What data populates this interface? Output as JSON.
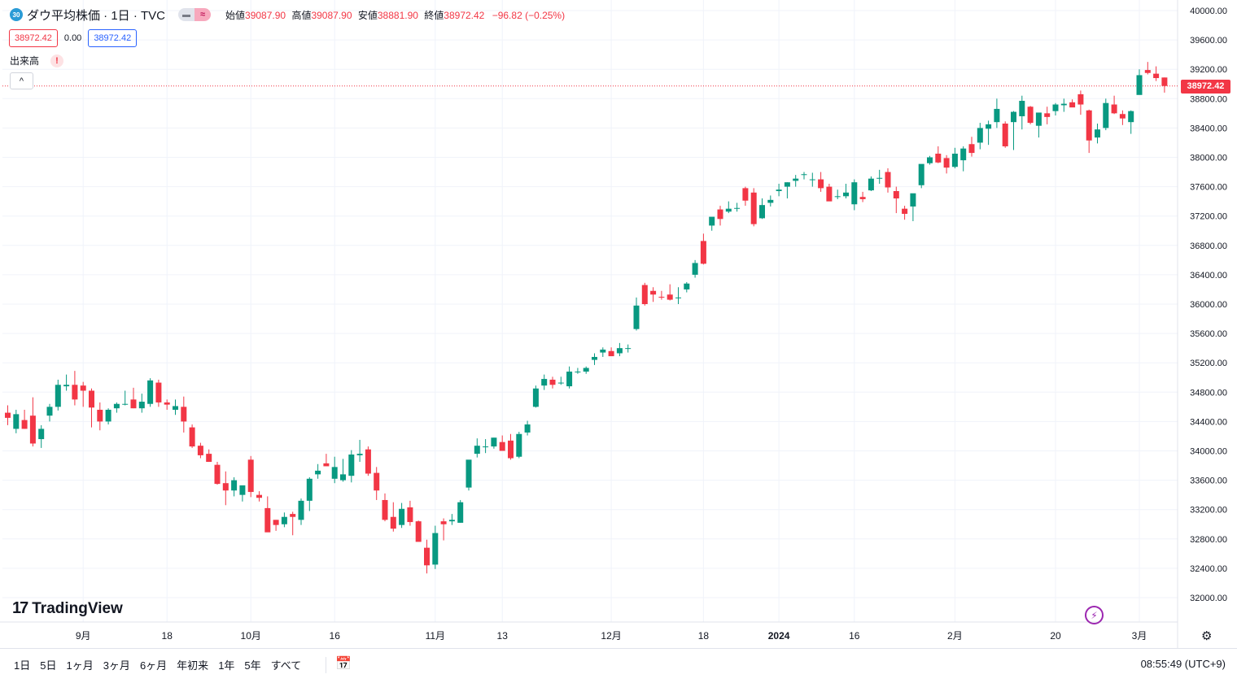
{
  "header": {
    "symbol_badge": "30",
    "title": "ダウ平均株価 · 1日 · TVC",
    "ohlc": [
      {
        "label": "始値",
        "value": "39087.90"
      },
      {
        "label": "高値",
        "value": "39087.90"
      },
      {
        "label": "安値",
        "value": "38881.90"
      },
      {
        "label": "終値",
        "value": "38972.42"
      },
      {
        "label": "",
        "value": "−96.82 (−0.25%)"
      }
    ],
    "bid": "38972.42",
    "spread": "0.00",
    "ask": "38972.42",
    "volume_label": "出来高",
    "warning": "!",
    "collapse": "^"
  },
  "brand": {
    "mark": "17",
    "name": "TradingView"
  },
  "price_tag": "38972.42",
  "bottom": {
    "ranges": [
      "1日",
      "5日",
      "1ヶ月",
      "3ヶ月",
      "6ヶ月",
      "年初来",
      "1年",
      "5年",
      "すべて"
    ],
    "clock": "08:55:49 (UTC+9)"
  },
  "colors": {
    "up": "#089981",
    "down": "#f23645",
    "grid": "#f0f3fa",
    "axis_text": "#131722"
  },
  "chart_data": {
    "type": "candlestick",
    "y_axis": {
      "ticks": [
        32000,
        32400,
        32800,
        33200,
        33600,
        34000,
        34400,
        34800,
        35200,
        35600,
        36000,
        36400,
        36800,
        37200,
        37600,
        38000,
        38400,
        38800,
        39200,
        39600,
        40000
      ],
      "tick_labels": [
        "32000.00",
        "32400.00",
        "32800.00",
        "33200.00",
        "33600.00",
        "34000.00",
        "34400.00",
        "34800.00",
        "35200.00",
        "35600.00",
        "36000.00",
        "36400.00",
        "36800.00",
        "37200.00",
        "37600.00",
        "38000.00",
        "38400.00",
        "38800.00",
        "39200.00",
        "39600.00",
        "40000.00"
      ],
      "range": [
        31600,
        40050
      ],
      "side": "right"
    },
    "x_axis": {
      "tick_labels": [
        "9月",
        "18",
        "10月",
        "16",
        "11月",
        "13",
        "12月",
        "18",
        "2024",
        "16",
        "2月",
        "20",
        "3月"
      ],
      "tick_index": [
        9,
        19,
        29,
        39,
        51,
        59,
        72,
        83,
        92,
        101,
        113,
        125,
        135
      ]
    },
    "last_price": 38972.42,
    "candles": [
      [
        34520,
        34620,
        34350,
        34450
      ],
      [
        34300,
        34560,
        34240,
        34500
      ],
      [
        34420,
        34560,
        34300,
        34300
      ],
      [
        34480,
        34730,
        34060,
        34100
      ],
      [
        34160,
        34350,
        34040,
        34300
      ],
      [
        34480,
        34640,
        34400,
        34600
      ],
      [
        34600,
        34970,
        34550,
        34900
      ],
      [
        34880,
        35040,
        34820,
        34900
      ],
      [
        34900,
        35090,
        34620,
        34700
      ],
      [
        34890,
        34940,
        34600,
        34820
      ],
      [
        34820,
        34850,
        34320,
        34590
      ],
      [
        34560,
        34660,
        34280,
        34400
      ],
      [
        34400,
        34580,
        34360,
        34560
      ],
      [
        34580,
        34660,
        34520,
        34640
      ],
      [
        34640,
        34820,
        34620,
        34640
      ],
      [
        34700,
        34860,
        34580,
        34580
      ],
      [
        34580,
        34780,
        34520,
        34670
      ],
      [
        34640,
        34990,
        34600,
        34960
      ],
      [
        34930,
        34970,
        34600,
        34660
      ],
      [
        34660,
        34700,
        34560,
        34630
      ],
      [
        34560,
        34700,
        34490,
        34610
      ],
      [
        34600,
        34740,
        34250,
        34400
      ],
      [
        34320,
        34360,
        34040,
        34060
      ],
      [
        34070,
        34110,
        33900,
        33940
      ],
      [
        33960,
        34020,
        33850,
        33850
      ],
      [
        33810,
        33850,
        33540,
        33550
      ],
      [
        33560,
        33720,
        33260,
        33460
      ],
      [
        33460,
        33640,
        33380,
        33600
      ],
      [
        33400,
        33520,
        33310,
        33530
      ],
      [
        33880,
        33930,
        33370,
        33440
      ],
      [
        33400,
        33450,
        33310,
        33360
      ],
      [
        33220,
        33380,
        32920,
        32890
      ],
      [
        33060,
        33060,
        32910,
        32990
      ],
      [
        33000,
        33160,
        32960,
        33100
      ],
      [
        33140,
        33170,
        32850,
        33100
      ],
      [
        33060,
        33350,
        32990,
        33320
      ],
      [
        33320,
        33640,
        33180,
        33620
      ],
      [
        33680,
        33820,
        33620,
        33730
      ],
      [
        33830,
        33960,
        33810,
        33790
      ],
      [
        33620,
        33920,
        33560,
        33780
      ],
      [
        33600,
        33890,
        33580,
        33680
      ],
      [
        33660,
        34010,
        33570,
        33950
      ],
      [
        33940,
        34150,
        33850,
        33960
      ],
      [
        34020,
        34060,
        33660,
        33690
      ],
      [
        33700,
        33780,
        33330,
        33460
      ],
      [
        33330,
        33420,
        33040,
        33060
      ],
      [
        33100,
        33300,
        32900,
        32940
      ],
      [
        32990,
        33290,
        32950,
        33210
      ],
      [
        33230,
        33320,
        32980,
        33030
      ],
      [
        33040,
        33050,
        32770,
        32760
      ],
      [
        32680,
        32790,
        32330,
        32440
      ],
      [
        32450,
        32980,
        32390,
        32880
      ],
      [
        33040,
        33080,
        32780,
        33000
      ],
      [
        33040,
        33140,
        32990,
        33060
      ],
      [
        33020,
        33330,
        33020,
        33300
      ],
      [
        33500,
        33870,
        33460,
        33880
      ],
      [
        33960,
        34170,
        33910,
        34070
      ],
      [
        34060,
        34160,
        33970,
        34060
      ],
      [
        34060,
        34180,
        34030,
        34180
      ],
      [
        34120,
        34210,
        34000,
        34000
      ],
      [
        34140,
        34230,
        33880,
        33900
      ],
      [
        33920,
        34260,
        33900,
        34230
      ],
      [
        34250,
        34410,
        34210,
        34360
      ],
      [
        34600,
        34890,
        34590,
        34850
      ],
      [
        34890,
        35040,
        34830,
        34980
      ],
      [
        34970,
        35010,
        34850,
        34900
      ],
      [
        34920,
        35010,
        34900,
        34930
      ],
      [
        34880,
        35150,
        34850,
        35080
      ],
      [
        35070,
        35130,
        35050,
        35080
      ],
      [
        35080,
        35150,
        35050,
        35130
      ],
      [
        35240,
        35330,
        35170,
        35280
      ],
      [
        35340,
        35410,
        35280,
        35380
      ],
      [
        35360,
        35410,
        35320,
        35290
      ],
      [
        35330,
        35470,
        35290,
        35400
      ],
      [
        35390,
        35450,
        35340,
        35400
      ],
      [
        35660,
        36090,
        35640,
        35980
      ],
      [
        36260,
        36290,
        35980,
        36000
      ],
      [
        36180,
        36230,
        36030,
        36130
      ],
      [
        36100,
        36180,
        36060,
        36090
      ],
      [
        36130,
        36270,
        36050,
        36060
      ],
      [
        36080,
        36230,
        36000,
        36090
      ],
      [
        36200,
        36300,
        36160,
        36280
      ],
      [
        36400,
        36600,
        36360,
        36560
      ],
      [
        36860,
        36960,
        36540,
        36550
      ],
      [
        37070,
        37140,
        37000,
        37190
      ],
      [
        37290,
        37340,
        37070,
        37160
      ],
      [
        37260,
        37400,
        37240,
        37300
      ],
      [
        37300,
        37380,
        37260,
        37310
      ],
      [
        37580,
        37600,
        37340,
        37410
      ],
      [
        37520,
        37580,
        37060,
        37090
      ],
      [
        37170,
        37440,
        37160,
        37350
      ],
      [
        37380,
        37480,
        37330,
        37420
      ],
      [
        37540,
        37640,
        37470,
        37560
      ],
      [
        37600,
        37660,
        37440,
        37660
      ],
      [
        37680,
        37760,
        37600,
        37710
      ],
      [
        37770,
        37800,
        37700,
        37770
      ],
      [
        37700,
        37790,
        37600,
        37700
      ],
      [
        37700,
        37800,
        37530,
        37580
      ],
      [
        37600,
        37640,
        37420,
        37400
      ],
      [
        37470,
        37560,
        37430,
        37470
      ],
      [
        37470,
        37640,
        37440,
        37520
      ],
      [
        37360,
        37700,
        37280,
        37660
      ],
      [
        37460,
        37530,
        37390,
        37430
      ],
      [
        37550,
        37740,
        37540,
        37710
      ],
      [
        37710,
        37830,
        37640,
        37720
      ],
      [
        37800,
        37850,
        37520,
        37590
      ],
      [
        37540,
        37600,
        37240,
        37440
      ],
      [
        37300,
        37340,
        37150,
        37230
      ],
      [
        37330,
        37460,
        37130,
        37510
      ],
      [
        37620,
        37840,
        37580,
        37910
      ],
      [
        37920,
        38020,
        37900,
        38000
      ],
      [
        38050,
        38150,
        37920,
        37930
      ],
      [
        37990,
        38030,
        37780,
        37860
      ],
      [
        37870,
        38130,
        37850,
        38050
      ],
      [
        37960,
        38150,
        37810,
        38120
      ],
      [
        38180,
        38280,
        38010,
        38060
      ],
      [
        38200,
        38470,
        38110,
        38400
      ],
      [
        38390,
        38500,
        38170,
        38450
      ],
      [
        38480,
        38800,
        38400,
        38660
      ],
      [
        38460,
        38490,
        38130,
        38150
      ],
      [
        38480,
        38630,
        38100,
        38620
      ],
      [
        38560,
        38840,
        38380,
        38770
      ],
      [
        38690,
        38700,
        38450,
        38470
      ],
      [
        38430,
        38560,
        38270,
        38610
      ],
      [
        38600,
        38690,
        38450,
        38550
      ],
      [
        38630,
        38740,
        38570,
        38720
      ],
      [
        38710,
        38800,
        38620,
        38730
      ],
      [
        38750,
        38790,
        38700,
        38680
      ],
      [
        38860,
        38910,
        38580,
        38720
      ],
      [
        38640,
        38650,
        38060,
        38230
      ],
      [
        38270,
        38460,
        38190,
        38380
      ],
      [
        38400,
        38800,
        38370,
        38740
      ],
      [
        38720,
        38840,
        38590,
        38600
      ],
      [
        38590,
        38640,
        38440,
        38530
      ],
      [
        38480,
        38640,
        38320,
        38630
      ],
      [
        38850,
        39200,
        38860,
        39120
      ],
      [
        39190,
        39300,
        39130,
        39150
      ],
      [
        39140,
        39240,
        39040,
        39080
      ],
      [
        39087.9,
        39087.9,
        38881.9,
        38972.42
      ]
    ]
  }
}
